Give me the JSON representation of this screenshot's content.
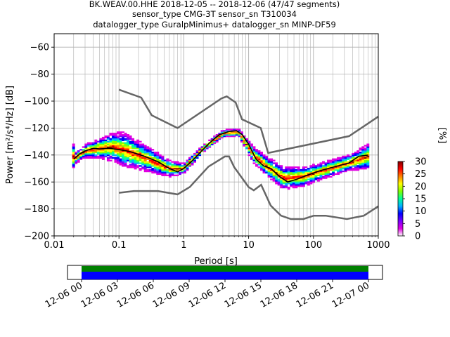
{
  "chart_data": {
    "type": "heatmap",
    "title_lines": [
      "BK.WEAV.00.HHE   2018-12-05 -- 2018-12-06  (47/47 segments)",
      "sensor_type CMG-3T sensor_sn T310034",
      "datalogger_type GuralpMinimus+ datalogger_sn MINP-DF59"
    ],
    "xlabel": "Period [s]",
    "ylabel": "Power [m²/s⁴/Hz] [dB]",
    "xscale": "log",
    "xlim": [
      0.01,
      1000
    ],
    "ylim": [
      -200,
      -50
    ],
    "xticks": [
      0.01,
      0.1,
      1,
      10,
      100,
      1000
    ],
    "xtick_labels": [
      "0.01",
      "0.1",
      "1",
      "10",
      "100",
      "1000"
    ],
    "yticks": [
      -200,
      -180,
      -160,
      -140,
      -120,
      -100,
      -80,
      -60
    ],
    "ytick_labels": [
      "−200",
      "−180",
      "−160",
      "−140",
      "−120",
      "−100",
      "−80",
      "−60"
    ],
    "grid": true,
    "colorbar": {
      "label": "[%]",
      "range": [
        0,
        30
      ],
      "ticks": [
        0,
        5,
        10,
        15,
        20,
        25,
        30
      ],
      "tick_labels": [
        "0",
        "5",
        "10",
        "15",
        "20",
        "25",
        "30"
      ],
      "colormap": [
        "#ffffff",
        "#e000e0",
        "#7a00ff",
        "#0000ff",
        "#00b0ff",
        "#00ff99",
        "#80ff00",
        "#ffff00",
        "#ff8000",
        "#ff0000",
        "#800000"
      ]
    },
    "noise_models": [
      {
        "name": "high",
        "color": "#666666",
        "points": [
          [
            0.1,
            -91.5
          ],
          [
            0.22,
            -97.4
          ],
          [
            0.32,
            -110.5
          ],
          [
            0.8,
            -120
          ],
          [
            3.8,
            -98
          ],
          [
            4.6,
            -96.5
          ],
          [
            6.3,
            -101
          ],
          [
            7.9,
            -113.5
          ],
          [
            15.4,
            -120
          ],
          [
            20,
            -138.5
          ],
          [
            354.8,
            -126
          ],
          [
            1000,
            -111.5
          ]
        ]
      },
      {
        "name": "low",
        "color": "#666666",
        "points": [
          [
            0.1,
            -168
          ],
          [
            0.17,
            -166.7
          ],
          [
            0.4,
            -166.7
          ],
          [
            0.8,
            -169.2
          ],
          [
            1.24,
            -163.7
          ],
          [
            2.4,
            -148.6
          ],
          [
            4.3,
            -141.1
          ],
          [
            5,
            -141.1
          ],
          [
            6,
            -149
          ],
          [
            10,
            -163.8
          ],
          [
            12,
            -166.2
          ],
          [
            15.6,
            -162.1
          ],
          [
            21.9,
            -177.5
          ],
          [
            31.6,
            -185
          ],
          [
            45,
            -187.5
          ],
          [
            70,
            -187.5
          ],
          [
            101,
            -185
          ],
          [
            154,
            -185
          ],
          [
            328,
            -187.5
          ],
          [
            600,
            -185
          ],
          [
            1000,
            -178
          ]
        ]
      }
    ],
    "median": {
      "color": "#000000",
      "points": [
        [
          0.02,
          -143
        ],
        [
          0.025,
          -139
        ],
        [
          0.03,
          -137
        ],
        [
          0.04,
          -135
        ],
        [
          0.05,
          -135.5
        ],
        [
          0.07,
          -135
        ],
        [
          0.1,
          -136
        ],
        [
          0.15,
          -137.5
        ],
        [
          0.25,
          -141
        ],
        [
          0.4,
          -145
        ],
        [
          0.6,
          -150
        ],
        [
          0.8,
          -152.5
        ],
        [
          1,
          -150
        ],
        [
          1.3,
          -145
        ],
        [
          1.8,
          -138
        ],
        [
          2.5,
          -131
        ],
        [
          3.5,
          -125
        ],
        [
          5,
          -122.5
        ],
        [
          6.5,
          -122
        ],
        [
          8,
          -125
        ],
        [
          10,
          -132
        ],
        [
          13,
          -143
        ],
        [
          17,
          -148
        ],
        [
          22,
          -150
        ],
        [
          30,
          -156
        ],
        [
          40,
          -160
        ],
        [
          55,
          -158
        ],
        [
          80,
          -155
        ],
        [
          120,
          -152
        ],
        [
          200,
          -149
        ],
        [
          350,
          -146
        ],
        [
          500,
          -141
        ],
        [
          700,
          -140
        ]
      ]
    },
    "psd_density": {
      "columns": [
        {
          "period": 0.02,
          "center": -143,
          "spread": 3
        },
        {
          "period": 0.03,
          "center": -137,
          "spread": 4
        },
        {
          "period": 0.05,
          "center": -135,
          "spread": 6
        },
        {
          "period": 0.08,
          "center": -134,
          "spread": 9
        },
        {
          "period": 0.12,
          "center": -136,
          "spread": 11
        },
        {
          "period": 0.2,
          "center": -140,
          "spread": 9
        },
        {
          "period": 0.35,
          "center": -145,
          "spread": 7
        },
        {
          "period": 0.6,
          "center": -150,
          "spread": 5
        },
        {
          "period": 1,
          "center": -150,
          "spread": 3
        },
        {
          "period": 2,
          "center": -135,
          "spread": 2
        },
        {
          "period": 4,
          "center": -124,
          "spread": 2
        },
        {
          "period": 7,
          "center": -123,
          "spread": 2
        },
        {
          "period": 12,
          "center": -140,
          "spread": 5
        },
        {
          "period": 20,
          "center": -149,
          "spread": 6
        },
        {
          "period": 35,
          "center": -157,
          "spread": 7
        },
        {
          "period": 70,
          "center": -156,
          "spread": 6
        },
        {
          "period": 150,
          "center": -151,
          "spread": 5
        },
        {
          "period": 400,
          "center": -145,
          "spread": 5
        },
        {
          "period": 700,
          "center": -141,
          "spread": 8
        }
      ]
    },
    "coverage": {
      "tick_labels": [
        "12-06 00",
        "12-06 03",
        "12-06 06",
        "12-06 09",
        "12-06 12",
        "12-06 15",
        "12-06 18",
        "12-06 21",
        "12-07 00"
      ],
      "bars": [
        {
          "name": "data",
          "color": "#008000"
        },
        {
          "name": "processed",
          "color": "#0000ff"
        }
      ]
    }
  }
}
